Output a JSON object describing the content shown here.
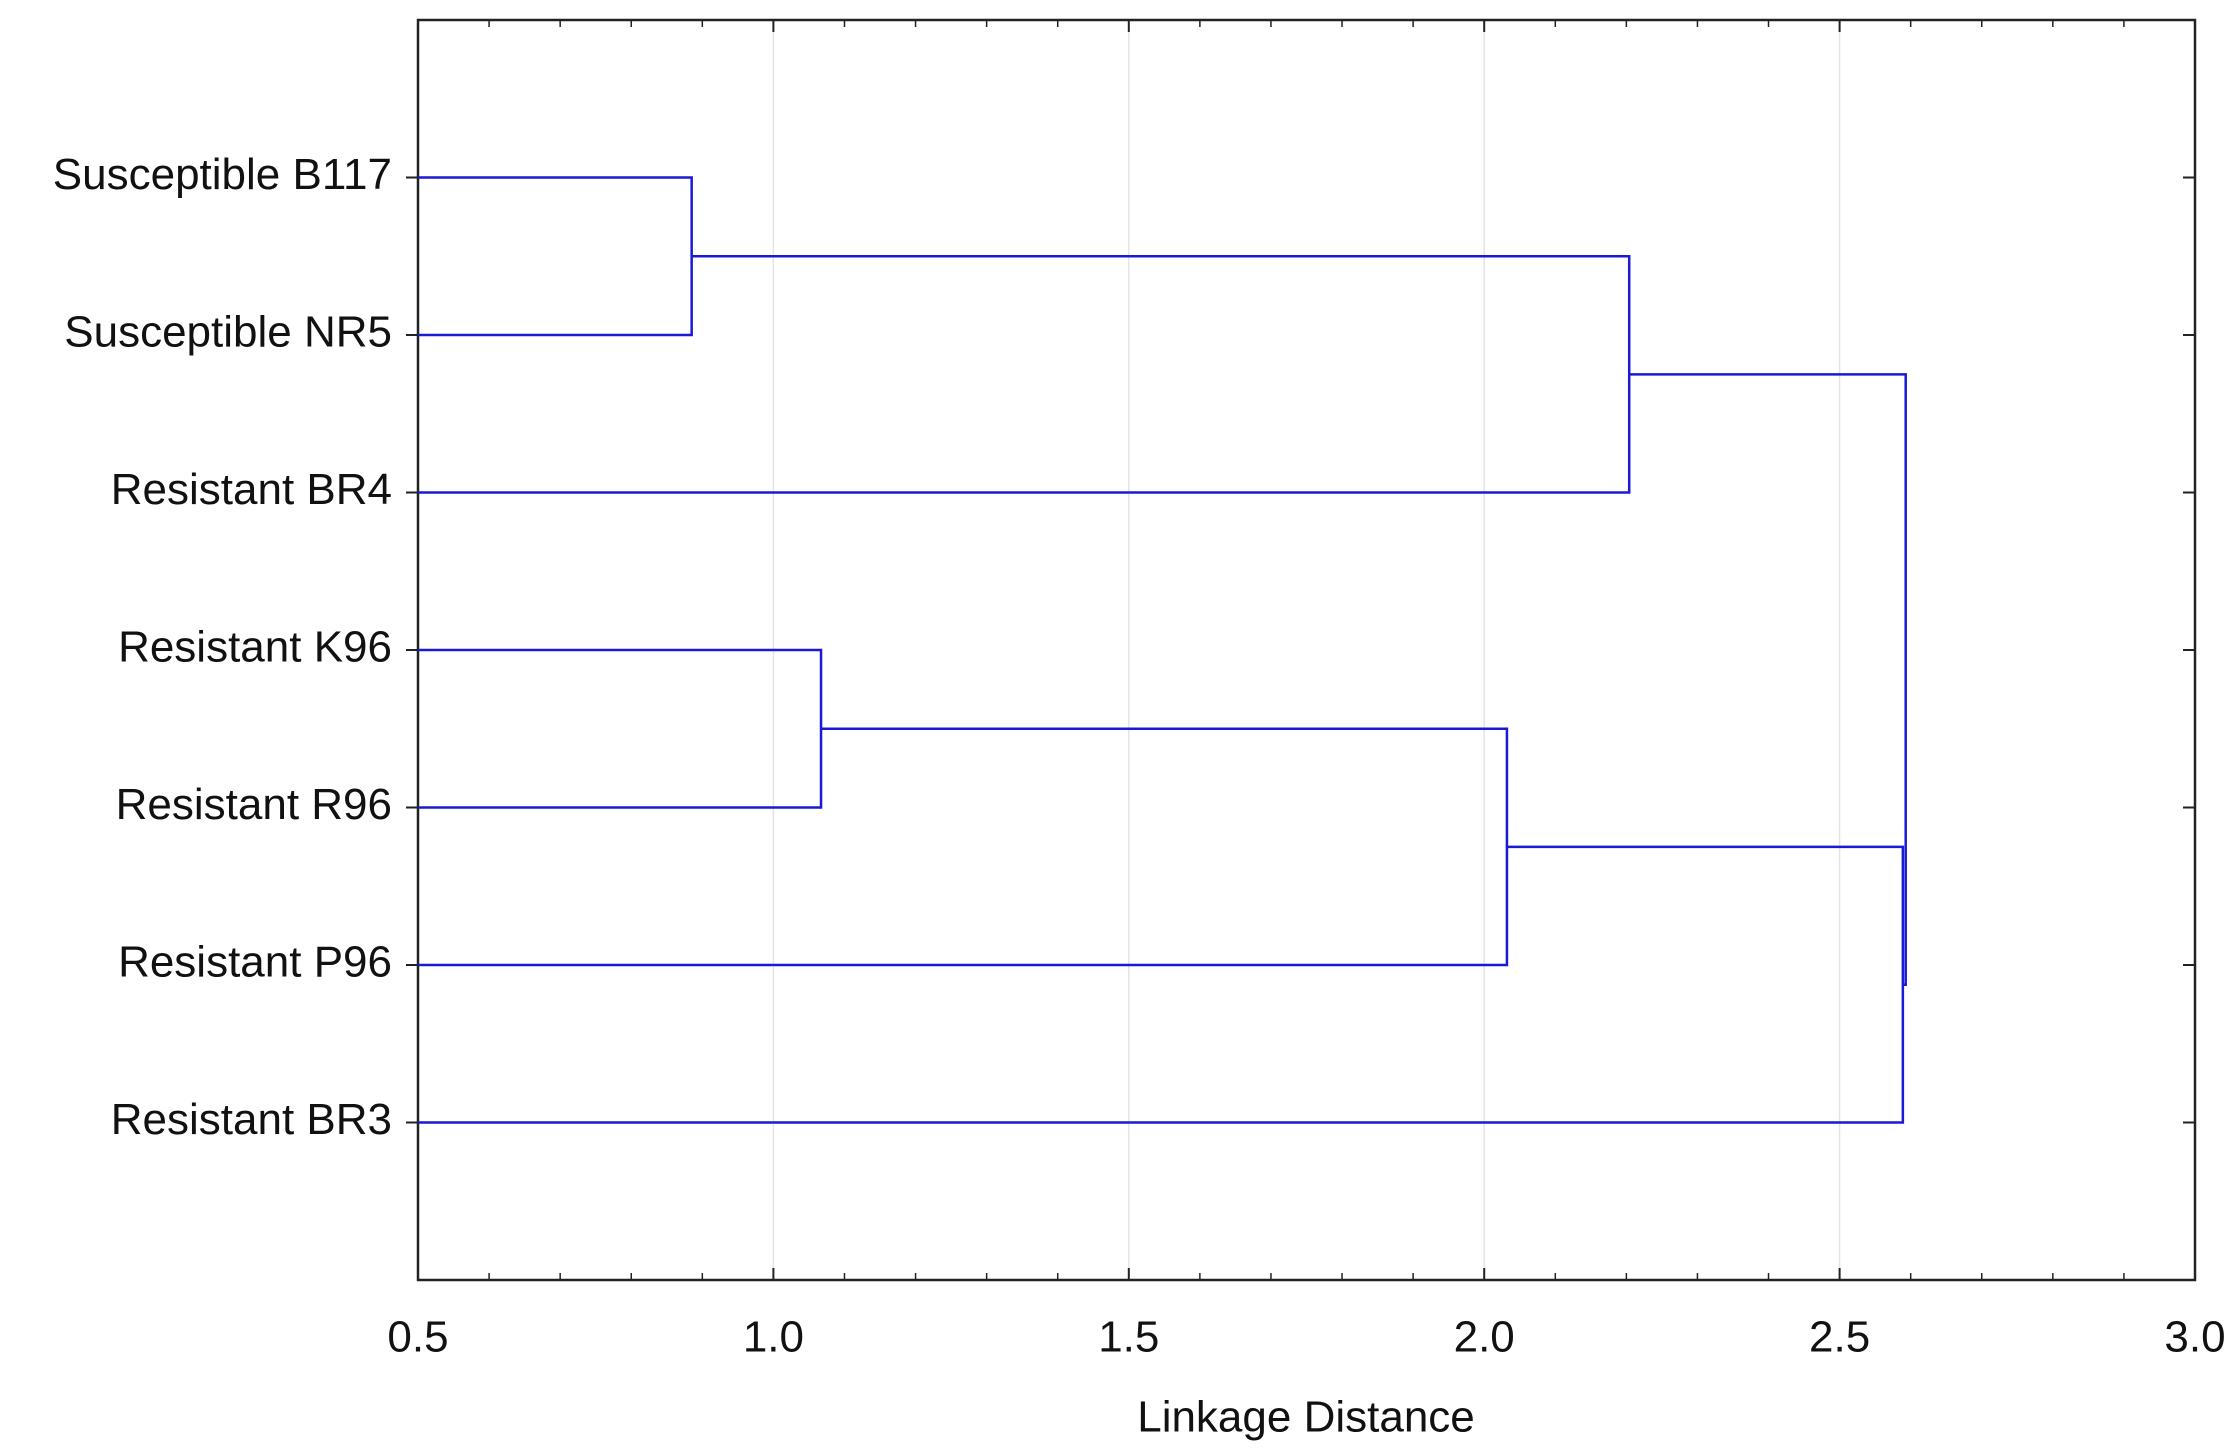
{
  "chart_data": {
    "type": "dendrogram",
    "x_label": "Linkage Distance",
    "leaves": [
      "Susceptible B117",
      "Susceptible NR5",
      "Resistant BR4",
      "Resistant K96",
      "Resistant R96",
      "Resistant P96",
      "Resistant BR3"
    ],
    "merges": [
      {
        "children": [
          0,
          1
        ],
        "height": 0.885
      },
      {
        "children": [
          7,
          2
        ],
        "height": 2.204
      },
      {
        "children": [
          3,
          4
        ],
        "height": 1.067
      },
      {
        "children": [
          9,
          5
        ],
        "height": 2.032
      },
      {
        "children": [
          10,
          6
        ],
        "height": 2.589
      },
      {
        "children": [
          8,
          11
        ],
        "height": 2.593
      }
    ],
    "color": "#1a1ad4",
    "xlim": [
      0.5,
      3.0
    ],
    "xticks": [
      0.5,
      {
        "value": 1.0,
        "label": "1.0"
      },
      1.5,
      {
        "value": 2.0,
        "label": "2.0"
      },
      2.5,
      {
        "value": 3.0,
        "label": "3.0"
      }
    ],
    "grid": true
  }
}
